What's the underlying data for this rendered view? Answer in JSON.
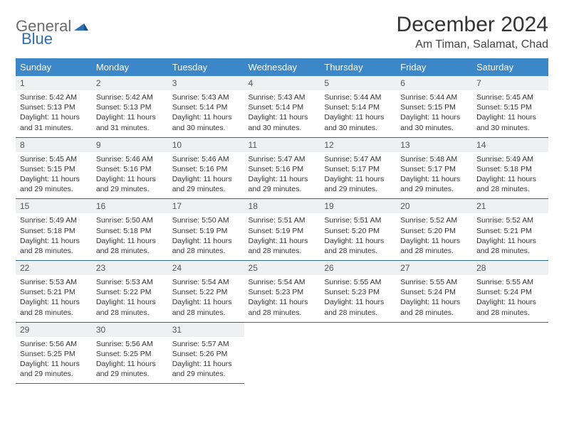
{
  "logo": {
    "general": "General",
    "blue": "Blue"
  },
  "title": "December 2024",
  "location": "Am Timan, Salamat, Chad",
  "colors": {
    "header_bg": "#3b87c8",
    "header_text": "#ffffff",
    "daynum_bg": "#eef0f2",
    "rule": "#336699",
    "logo_gray": "#6b6b6b",
    "logo_blue": "#2d6fb3"
  },
  "day_headers": [
    "Sunday",
    "Monday",
    "Tuesday",
    "Wednesday",
    "Thursday",
    "Friday",
    "Saturday"
  ],
  "weeks": [
    [
      {
        "n": "1",
        "sr": "Sunrise: 5:42 AM",
        "ss": "Sunset: 5:13 PM",
        "dl": "Daylight: 11 hours and 31 minutes."
      },
      {
        "n": "2",
        "sr": "Sunrise: 5:42 AM",
        "ss": "Sunset: 5:13 PM",
        "dl": "Daylight: 11 hours and 31 minutes."
      },
      {
        "n": "3",
        "sr": "Sunrise: 5:43 AM",
        "ss": "Sunset: 5:14 PM",
        "dl": "Daylight: 11 hours and 30 minutes."
      },
      {
        "n": "4",
        "sr": "Sunrise: 5:43 AM",
        "ss": "Sunset: 5:14 PM",
        "dl": "Daylight: 11 hours and 30 minutes."
      },
      {
        "n": "5",
        "sr": "Sunrise: 5:44 AM",
        "ss": "Sunset: 5:14 PM",
        "dl": "Daylight: 11 hours and 30 minutes."
      },
      {
        "n": "6",
        "sr": "Sunrise: 5:44 AM",
        "ss": "Sunset: 5:15 PM",
        "dl": "Daylight: 11 hours and 30 minutes."
      },
      {
        "n": "7",
        "sr": "Sunrise: 5:45 AM",
        "ss": "Sunset: 5:15 PM",
        "dl": "Daylight: 11 hours and 30 minutes."
      }
    ],
    [
      {
        "n": "8",
        "sr": "Sunrise: 5:45 AM",
        "ss": "Sunset: 5:15 PM",
        "dl": "Daylight: 11 hours and 29 minutes."
      },
      {
        "n": "9",
        "sr": "Sunrise: 5:46 AM",
        "ss": "Sunset: 5:16 PM",
        "dl": "Daylight: 11 hours and 29 minutes."
      },
      {
        "n": "10",
        "sr": "Sunrise: 5:46 AM",
        "ss": "Sunset: 5:16 PM",
        "dl": "Daylight: 11 hours and 29 minutes."
      },
      {
        "n": "11",
        "sr": "Sunrise: 5:47 AM",
        "ss": "Sunset: 5:16 PM",
        "dl": "Daylight: 11 hours and 29 minutes."
      },
      {
        "n": "12",
        "sr": "Sunrise: 5:47 AM",
        "ss": "Sunset: 5:17 PM",
        "dl": "Daylight: 11 hours and 29 minutes."
      },
      {
        "n": "13",
        "sr": "Sunrise: 5:48 AM",
        "ss": "Sunset: 5:17 PM",
        "dl": "Daylight: 11 hours and 29 minutes."
      },
      {
        "n": "14",
        "sr": "Sunrise: 5:49 AM",
        "ss": "Sunset: 5:18 PM",
        "dl": "Daylight: 11 hours and 28 minutes."
      }
    ],
    [
      {
        "n": "15",
        "sr": "Sunrise: 5:49 AM",
        "ss": "Sunset: 5:18 PM",
        "dl": "Daylight: 11 hours and 28 minutes."
      },
      {
        "n": "16",
        "sr": "Sunrise: 5:50 AM",
        "ss": "Sunset: 5:18 PM",
        "dl": "Daylight: 11 hours and 28 minutes."
      },
      {
        "n": "17",
        "sr": "Sunrise: 5:50 AM",
        "ss": "Sunset: 5:19 PM",
        "dl": "Daylight: 11 hours and 28 minutes."
      },
      {
        "n": "18",
        "sr": "Sunrise: 5:51 AM",
        "ss": "Sunset: 5:19 PM",
        "dl": "Daylight: 11 hours and 28 minutes."
      },
      {
        "n": "19",
        "sr": "Sunrise: 5:51 AM",
        "ss": "Sunset: 5:20 PM",
        "dl": "Daylight: 11 hours and 28 minutes."
      },
      {
        "n": "20",
        "sr": "Sunrise: 5:52 AM",
        "ss": "Sunset: 5:20 PM",
        "dl": "Daylight: 11 hours and 28 minutes."
      },
      {
        "n": "21",
        "sr": "Sunrise: 5:52 AM",
        "ss": "Sunset: 5:21 PM",
        "dl": "Daylight: 11 hours and 28 minutes."
      }
    ],
    [
      {
        "n": "22",
        "sr": "Sunrise: 5:53 AM",
        "ss": "Sunset: 5:21 PM",
        "dl": "Daylight: 11 hours and 28 minutes."
      },
      {
        "n": "23",
        "sr": "Sunrise: 5:53 AM",
        "ss": "Sunset: 5:22 PM",
        "dl": "Daylight: 11 hours and 28 minutes."
      },
      {
        "n": "24",
        "sr": "Sunrise: 5:54 AM",
        "ss": "Sunset: 5:22 PM",
        "dl": "Daylight: 11 hours and 28 minutes."
      },
      {
        "n": "25",
        "sr": "Sunrise: 5:54 AM",
        "ss": "Sunset: 5:23 PM",
        "dl": "Daylight: 11 hours and 28 minutes."
      },
      {
        "n": "26",
        "sr": "Sunrise: 5:55 AM",
        "ss": "Sunset: 5:23 PM",
        "dl": "Daylight: 11 hours and 28 minutes."
      },
      {
        "n": "27",
        "sr": "Sunrise: 5:55 AM",
        "ss": "Sunset: 5:24 PM",
        "dl": "Daylight: 11 hours and 28 minutes."
      },
      {
        "n": "28",
        "sr": "Sunrise: 5:55 AM",
        "ss": "Sunset: 5:24 PM",
        "dl": "Daylight: 11 hours and 28 minutes."
      }
    ],
    [
      {
        "n": "29",
        "sr": "Sunrise: 5:56 AM",
        "ss": "Sunset: 5:25 PM",
        "dl": "Daylight: 11 hours and 29 minutes."
      },
      {
        "n": "30",
        "sr": "Sunrise: 5:56 AM",
        "ss": "Sunset: 5:25 PM",
        "dl": "Daylight: 11 hours and 29 minutes."
      },
      {
        "n": "31",
        "sr": "Sunrise: 5:57 AM",
        "ss": "Sunset: 5:26 PM",
        "dl": "Daylight: 11 hours and 29 minutes."
      },
      null,
      null,
      null,
      null
    ]
  ]
}
